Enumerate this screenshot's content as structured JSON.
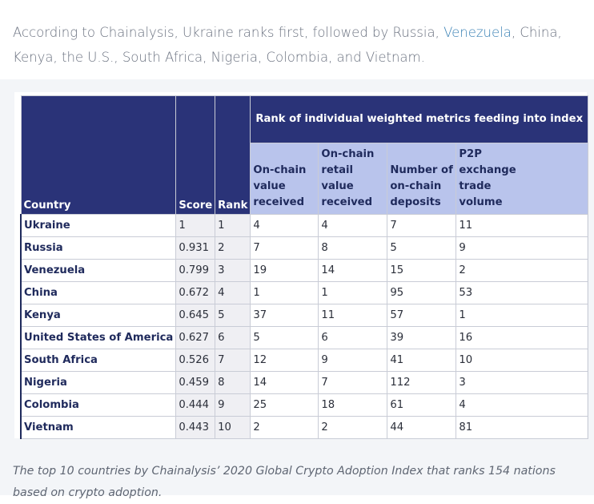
{
  "intro": {
    "before": "According to Chainalysis, Ukraine ranks first, followed by Russia, ",
    "link": "Venezuela",
    "after": ", China, Kenya, the U.S., South Africa, Nigeria, Colombia, and Vietnam."
  },
  "table": {
    "group_header": "Rank of individual weighted metrics feeding into index",
    "headers": {
      "country": "Country",
      "score": "Score",
      "rank": "Rank",
      "m1": [
        "On-chain",
        "value",
        "received"
      ],
      "m2": [
        "On-chain",
        "retail",
        "value",
        "received"
      ],
      "m3": [
        "Number of",
        "on-chain",
        "deposits"
      ],
      "m4": [
        "P2P",
        "exchange",
        "trade",
        "volume"
      ]
    },
    "rows": [
      {
        "country": "Ukraine",
        "score": "1",
        "rank": "1",
        "m1": "4",
        "m2": "4",
        "m3": "7",
        "m4": "11"
      },
      {
        "country": "Russia",
        "score": "0.931",
        "rank": "2",
        "m1": "7",
        "m2": "8",
        "m3": "5",
        "m4": "9"
      },
      {
        "country": "Venezuela",
        "score": "0.799",
        "rank": "3",
        "m1": "19",
        "m2": "14",
        "m3": "15",
        "m4": "2"
      },
      {
        "country": "China",
        "score": "0.672",
        "rank": "4",
        "m1": "1",
        "m2": "1",
        "m3": "95",
        "m4": "53"
      },
      {
        "country": "Kenya",
        "score": "0.645",
        "rank": "5",
        "m1": "37",
        "m2": "11",
        "m3": "57",
        "m4": "1"
      },
      {
        "country": "United States of America",
        "score": "0.627",
        "rank": "6",
        "m1": "5",
        "m2": "6",
        "m3": "39",
        "m4": "16"
      },
      {
        "country": "South Africa",
        "score": "0.526",
        "rank": "7",
        "m1": "12",
        "m2": "9",
        "m3": "41",
        "m4": "10"
      },
      {
        "country": "Nigeria",
        "score": "0.459",
        "rank": "8",
        "m1": "14",
        "m2": "7",
        "m3": "112",
        "m4": "3"
      },
      {
        "country": "Colombia",
        "score": "0.444",
        "rank": "9",
        "m1": "25",
        "m2": "18",
        "m3": "61",
        "m4": "4"
      },
      {
        "country": "Vietnam",
        "score": "0.443",
        "rank": "10",
        "m1": "2",
        "m2": "2",
        "m3": "44",
        "m4": "81"
      }
    ]
  },
  "caption": "The top 10 countries by Chainalysis’ 2020 Global Crypto Adoption Index that ranks 154 nations based on crypto adoption.",
  "colors": {
    "header_navy": "#2a3378",
    "header_light": "#b9c4ec",
    "link": "#3b82b5"
  }
}
